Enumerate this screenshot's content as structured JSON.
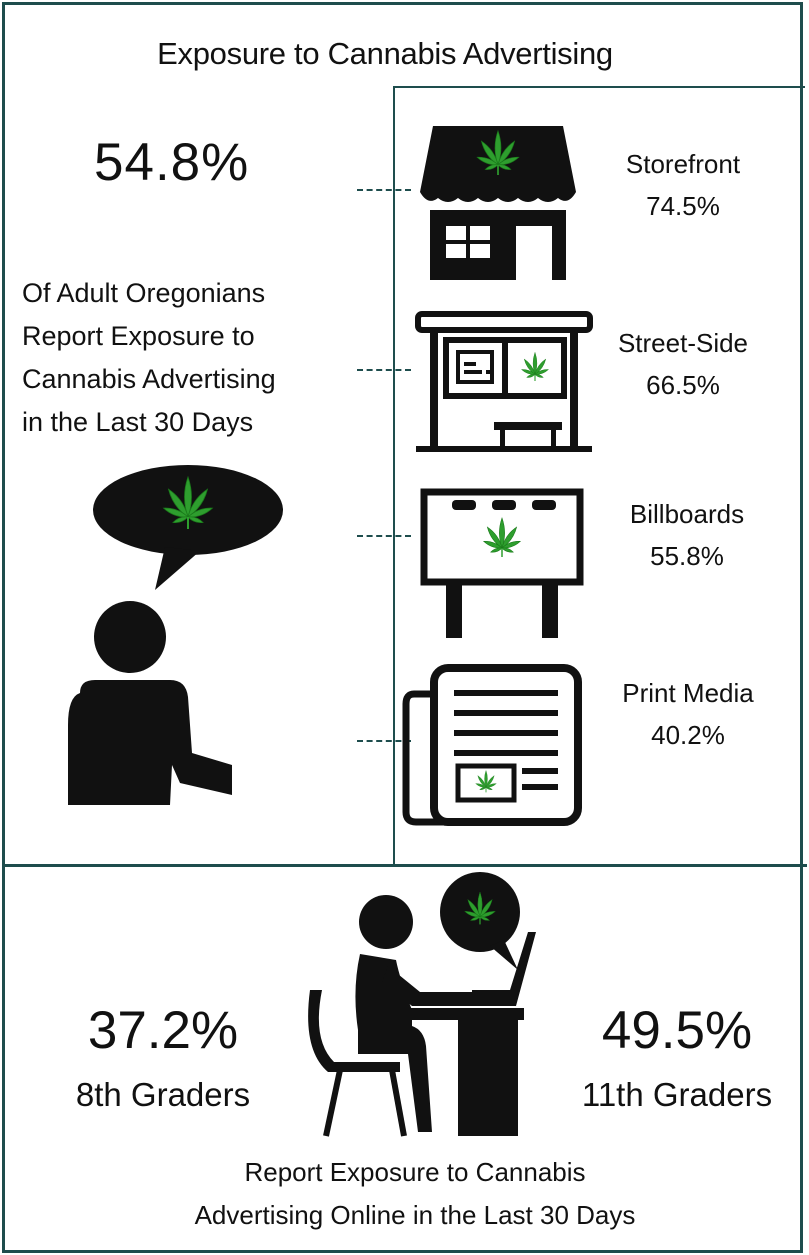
{
  "title": "Exposure to Cannabis Advertising",
  "adult": {
    "percent": "54.8%",
    "description_lines": [
      "Of Adult Oregonians",
      "Report Exposure to",
      "Cannabis Advertising",
      "in the Last 30 Days"
    ]
  },
  "channels": [
    {
      "name": "Storefront",
      "percent": "74.5%",
      "icon": "storefront-icon"
    },
    {
      "name": "Street-Side",
      "percent": "66.5%",
      "icon": "bus-shelter-icon"
    },
    {
      "name": "Billboards",
      "percent": "55.8%",
      "icon": "billboard-icon"
    },
    {
      "name": "Print Media",
      "percent": "40.2%",
      "icon": "newspaper-icon"
    }
  ],
  "online": {
    "grade8": {
      "percent": "37.2%",
      "label": "8th Graders"
    },
    "grade11": {
      "percent": "49.5%",
      "label": "11th Graders"
    },
    "description_lines": [
      "Report Exposure to Cannabis",
      "Advertising Online in the Last 30 Days"
    ]
  },
  "colors": {
    "border": "#1e4d4d",
    "leaf": "#2e9e2e",
    "leaf_dark": "#1a7a1a",
    "icon": "#111111"
  }
}
